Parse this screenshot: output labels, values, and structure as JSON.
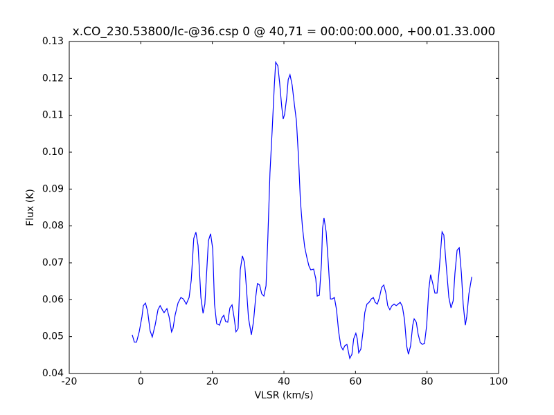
{
  "chart_data": {
    "type": "line",
    "title": "x.CO_230.53800/lc-@36.csp 0 @ 40,71 = 00:00:00.000, +00.01.33.000",
    "x_label": "VLSR (km/s)",
    "y_label": "Flux (K)",
    "xlim": [
      -20,
      100
    ],
    "xticks": [
      -20,
      0,
      20,
      40,
      60,
      80,
      100
    ],
    "ylim": [
      0.04,
      0.13
    ],
    "yticks": [
      0.04,
      0.05,
      0.06,
      0.07,
      0.08,
      0.09,
      {
        "value": 0.1,
        "label": "0.10"
      },
      0.11,
      0.12,
      0.13
    ],
    "grid": false,
    "series": [
      {
        "color": "#0000ff",
        "x": [
          -2.4,
          -1.8,
          -1.2,
          -0.45,
          0.32,
          0.71,
          1.3,
          1.9,
          2.6,
          3.2,
          4.0,
          4.8,
          5.4,
          6.1,
          6.5,
          7.3,
          7.9,
          8.6,
          9.0,
          9.6,
          10.4,
          11.2,
          11.9,
          12.7,
          13.5,
          14.1,
          14.8,
          15.4,
          16.0,
          16.8,
          17.4,
          17.9,
          18.5,
          18.9,
          19.5,
          20.1,
          20.6,
          21.2,
          22.0,
          22.6,
          23.2,
          23.7,
          24.3,
          24.9,
          25.5,
          26.1,
          26.6,
          27.2,
          27.8,
          28.4,
          29.0,
          29.5,
          30.1,
          30.9,
          31.5,
          32.1,
          32.6,
          33.2,
          33.8,
          34.4,
          35.0,
          35.5,
          36.1,
          36.7,
          37.3,
          37.7,
          38.3,
          38.8,
          39.4,
          39.8,
          40.2,
          40.8,
          41.2,
          41.7,
          42.3,
          42.9,
          43.5,
          44.1,
          44.6,
          45.2,
          45.8,
          46.4,
          47.0,
          47.5,
          48.3,
          48.9,
          49.3,
          49.9,
          50.5,
          50.8,
          51.2,
          51.8,
          52.4,
          53.0,
          53.5,
          54.1,
          54.7,
          55.3,
          55.9,
          56.5,
          57.0,
          57.6,
          58.4,
          59.0,
          59.5,
          60.1,
          60.5,
          60.9,
          61.5,
          62.1,
          62.6,
          63.2,
          63.8,
          64.4,
          65.0,
          65.5,
          66.1,
          66.7,
          67.3,
          67.9,
          68.5,
          69.0,
          69.6,
          70.2,
          70.8,
          71.4,
          71.9,
          72.5,
          73.1,
          73.7,
          74.3,
          74.8,
          75.4,
          76.0,
          76.4,
          77.0,
          77.5,
          78.1,
          78.7,
          79.3,
          79.9,
          80.5,
          81.0,
          81.6,
          82.2,
          82.8,
          83.4,
          84.2,
          84.7,
          85.3,
          86.1,
          86.7,
          87.3,
          87.8,
          88.4,
          89.0,
          89.6,
          90.1,
          90.7,
          91.1,
          91.7,
          92.5
        ],
        "values": [
          0.0505,
          0.0485,
          0.0485,
          0.0513,
          0.0554,
          0.0584,
          0.0591,
          0.0569,
          0.0516,
          0.0499,
          0.0531,
          0.0573,
          0.0584,
          0.0571,
          0.0565,
          0.0576,
          0.0554,
          0.0513,
          0.0522,
          0.0559,
          0.0591,
          0.0606,
          0.0602,
          0.0588,
          0.0606,
          0.0653,
          0.0766,
          0.0783,
          0.0747,
          0.0606,
          0.0563,
          0.0588,
          0.0691,
          0.076,
          0.0779,
          0.0738,
          0.0588,
          0.0535,
          0.0531,
          0.055,
          0.0558,
          0.0541,
          0.0539,
          0.0578,
          0.0586,
          0.055,
          0.0513,
          0.0522,
          0.0681,
          0.0719,
          0.07,
          0.0634,
          0.055,
          0.0505,
          0.0541,
          0.0606,
          0.0644,
          0.064,
          0.0616,
          0.061,
          0.0638,
          0.0766,
          0.0944,
          0.1056,
          0.1178,
          0.1244,
          0.1234,
          0.1188,
          0.1122,
          0.109,
          0.1103,
          0.115,
          0.1197,
          0.121,
          0.1182,
          0.1131,
          0.1084,
          0.0981,
          0.0869,
          0.0794,
          0.0743,
          0.0715,
          0.0691,
          0.0681,
          0.0683,
          0.0657,
          0.061,
          0.0612,
          0.07,
          0.0794,
          0.0822,
          0.0784,
          0.07,
          0.0602,
          0.0602,
          0.0606,
          0.0573,
          0.0513,
          0.0475,
          0.0464,
          0.0475,
          0.0479,
          0.0441,
          0.0452,
          0.0494,
          0.0509,
          0.0494,
          0.0456,
          0.0466,
          0.0513,
          0.0565,
          0.0588,
          0.0593,
          0.0602,
          0.0606,
          0.0593,
          0.0588,
          0.0606,
          0.0633,
          0.064,
          0.0618,
          0.0584,
          0.0573,
          0.0584,
          0.0588,
          0.0584,
          0.0588,
          0.0593,
          0.0582,
          0.0546,
          0.0475,
          0.0452,
          0.0475,
          0.0531,
          0.0548,
          0.0539,
          0.0507,
          0.0484,
          0.0479,
          0.0482,
          0.0531,
          0.0629,
          0.0668,
          0.0644,
          0.0618,
          0.0618,
          0.0681,
          0.0784,
          0.0775,
          0.07,
          0.0606,
          0.0578,
          0.0597,
          0.0672,
          0.0734,
          0.0741,
          0.0672,
          0.0588,
          0.0531,
          0.0554,
          0.0616,
          0.0662
        ]
      }
    ]
  }
}
